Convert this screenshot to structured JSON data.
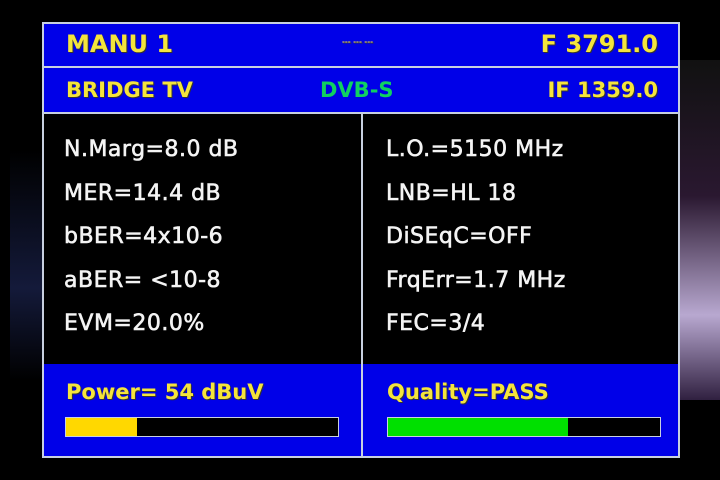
{
  "header": {
    "mode": "MANU 1",
    "center_marks": "--- --- ---",
    "frequency": "F 3791.0"
  },
  "subheader": {
    "channel": "BRIDGE TV",
    "standard": "DVB-S",
    "if_freq": "IF 1359.0"
  },
  "left_params": [
    "N.Marg=8.0 dB",
    "MER=14.4 dB",
    "bBER=4x10-6",
    "aBER= <10-8",
    "EVM=20.0%"
  ],
  "right_params": [
    "L.O.=5150 MHz",
    "LNB=HL 18",
    "DiSEqC=OFF",
    "FrqErr=1.7 MHz",
    "FEC=3/4"
  ],
  "power": {
    "label": "Power= 54 dBuV",
    "level_percent": 26,
    "color": "#ffd800"
  },
  "quality": {
    "label": "Quality=PASS",
    "level_percent": 66,
    "color": "#00e000"
  },
  "colors": {
    "panel": "#0000e8",
    "standard_text": "#10d060"
  }
}
